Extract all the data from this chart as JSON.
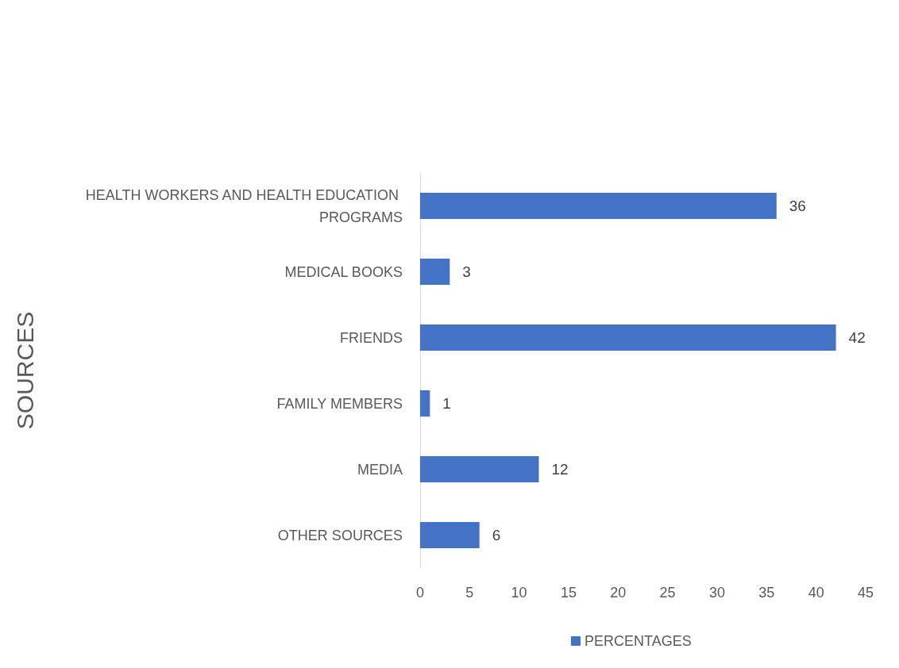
{
  "chart_data": {
    "type": "bar",
    "orientation": "horizontal",
    "ylabel": "SOURCES",
    "categories": [
      "HEALTH WORKERS AND HEALTH EDUCATION PROGRAMS",
      "MEDICAL BOOKS",
      "FRIENDS",
      "FAMILY MEMBERS",
      "MEDIA",
      "OTHER SOURCES"
    ],
    "series": [
      {
        "name": "PERCENTAGES",
        "color": "#4472c4",
        "values": [
          36,
          3,
          42,
          1,
          12,
          6
        ]
      }
    ],
    "xlim": [
      0,
      45
    ],
    "xticks": [
      0,
      5,
      10,
      15,
      20,
      25,
      30,
      35,
      40,
      45
    ],
    "grid": false,
    "legend": "bottom",
    "data_labels": true
  }
}
